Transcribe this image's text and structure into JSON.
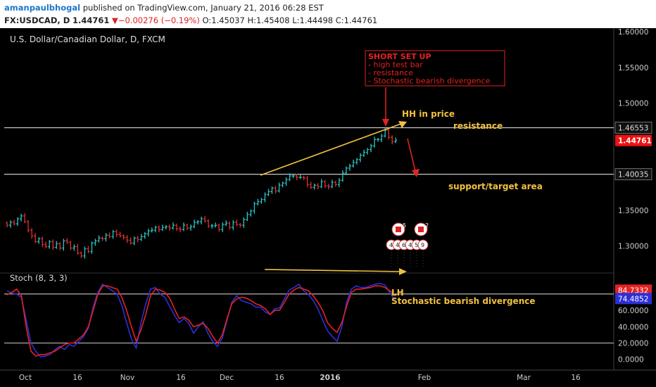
{
  "header": {
    "author": "amanpaulbhogal",
    "published": "published on TradingView.com, January 21, 2016 06:28 EST",
    "symbol": "FX:USDCAD, D",
    "last": "1.44761",
    "change": "−0.00276 (−0.19%)",
    "o_label": "O:",
    "o_val": "1.45037",
    "h_label": "H:",
    "h_val": "1.45408",
    "l_label": "L:",
    "l_val": "1.44498",
    "c_label": "C:",
    "c_val": "1.44761"
  },
  "chart_data": {
    "type": "candlestick",
    "title": "U.S. Dollar/Canadian Dollar, D, FXCM",
    "price_axis": {
      "range": [
        1.265,
        1.605
      ],
      "ticks": [
        "1.30000",
        "1.35000",
        "1.40000",
        "1.45000",
        "1.50000",
        "1.55000",
        "1.60000"
      ]
    },
    "x_axis": {
      "ticks": [
        "Oct",
        "16",
        "Nov",
        "16",
        "Dec",
        "16",
        "2016",
        "Feb",
        "Mar",
        "16"
      ]
    },
    "price_close_series": [
      1.329,
      1.333,
      1.331,
      1.338,
      1.342,
      1.334,
      1.322,
      1.314,
      1.306,
      1.31,
      1.302,
      1.299,
      1.306,
      1.298,
      1.303,
      1.297,
      1.307,
      1.305,
      1.297,
      1.299,
      1.29,
      1.286,
      1.296,
      1.292,
      1.304,
      1.307,
      1.311,
      1.31,
      1.315,
      1.313,
      1.32,
      1.316,
      1.314,
      1.312,
      1.308,
      1.304,
      1.311,
      1.309,
      1.313,
      1.317,
      1.321,
      1.322,
      1.326,
      1.323,
      1.326,
      1.327,
      1.325,
      1.329,
      1.324,
      1.323,
      1.329,
      1.325,
      1.327,
      1.333,
      1.334,
      1.338,
      1.335,
      1.328,
      1.328,
      1.329,
      1.323,
      1.33,
      1.332,
      1.326,
      1.333,
      1.33,
      1.329,
      1.337,
      1.344,
      1.349,
      1.359,
      1.362,
      1.365,
      1.372,
      1.376,
      1.381,
      1.377,
      1.385,
      1.388,
      1.393,
      1.398,
      1.398,
      1.396,
      1.396,
      1.395,
      1.386,
      1.382,
      1.385,
      1.383,
      1.39,
      1.384,
      1.383,
      1.389,
      1.386,
      1.392,
      1.402,
      1.409,
      1.412,
      1.417,
      1.421,
      1.427,
      1.431,
      1.435,
      1.44,
      1.449,
      1.449,
      1.454,
      1.462,
      1.452,
      1.446,
      1.448
    ],
    "key_levels": [
      {
        "label": "1.46553",
        "value": 1.46553
      },
      {
        "label": "1.40035",
        "value": 1.40035
      }
    ],
    "current_price": {
      "label": "1.44761",
      "value": 1.44761
    },
    "annotations": {
      "short_setup": [
        "SHORT SET UP",
        "- high test bar",
        "- resistance",
        "- Stochastic bearish divergence"
      ],
      "hh": "HH in price",
      "resistance": "resistance",
      "support": "support/target area",
      "lh": "LH",
      "divergence": "Stochastic bearish divergence"
    },
    "stochastic": {
      "title": "Stoch (8, 3, 3)",
      "range": [
        -8,
        104
      ],
      "ticks": [
        "0.0000",
        "20.0000",
        "40.0000",
        "60.0000",
        "80.0000"
      ],
      "levels": [
        80,
        20
      ],
      "k_label": "84.7332",
      "d_label": "74.4852",
      "k_color": "#e62222",
      "d_color": "#2d2fd6",
      "k_series": [
        79,
        82,
        86,
        78,
        40,
        10,
        4,
        6,
        6,
        8,
        10,
        14,
        18,
        20,
        20,
        25,
        30,
        40,
        60,
        80,
        90,
        90,
        88,
        86,
        76,
        60,
        40,
        22,
        36,
        55,
        78,
        86,
        85,
        82,
        75,
        62,
        50,
        52,
        48,
        40,
        42,
        44,
        38,
        28,
        20,
        30,
        50,
        68,
        74,
        76,
        75,
        72,
        68,
        66,
        62,
        55,
        60,
        60,
        70,
        80,
        85,
        88,
        86,
        84,
        78,
        70,
        60,
        45,
        38,
        33,
        45,
        65,
        82,
        86,
        86,
        87,
        88,
        90,
        90,
        88,
        84,
        80
      ],
      "d_series": [
        84,
        81,
        80,
        76,
        48,
        20,
        10,
        3,
        4,
        6,
        12,
        16,
        12,
        18,
        16,
        22,
        28,
        38,
        64,
        82,
        92,
        88,
        84,
        80,
        66,
        45,
        25,
        14,
        45,
        68,
        86,
        88,
        80,
        76,
        65,
        54,
        45,
        50,
        44,
        32,
        40,
        46,
        32,
        22,
        16,
        26,
        48,
        70,
        78,
        72,
        70,
        68,
        64,
        64,
        58,
        55,
        62,
        63,
        74,
        85,
        88,
        92,
        84,
        80,
        72,
        62,
        48,
        35,
        28,
        22,
        40,
        70,
        86,
        90,
        88,
        88,
        90,
        92,
        93,
        91,
        82,
        73
      ]
    },
    "event_flags": [
      "5",
      "2"
    ],
    "event_bubbles": [
      "4",
      "4",
      "6",
      "4",
      "5",
      "9"
    ],
    "colors": {
      "up": "#2bc5c5",
      "down": "#e22e2e",
      "annotation": "#f0c040",
      "arrow_red": "#e52222",
      "level_line": "#c8c8c8"
    }
  }
}
